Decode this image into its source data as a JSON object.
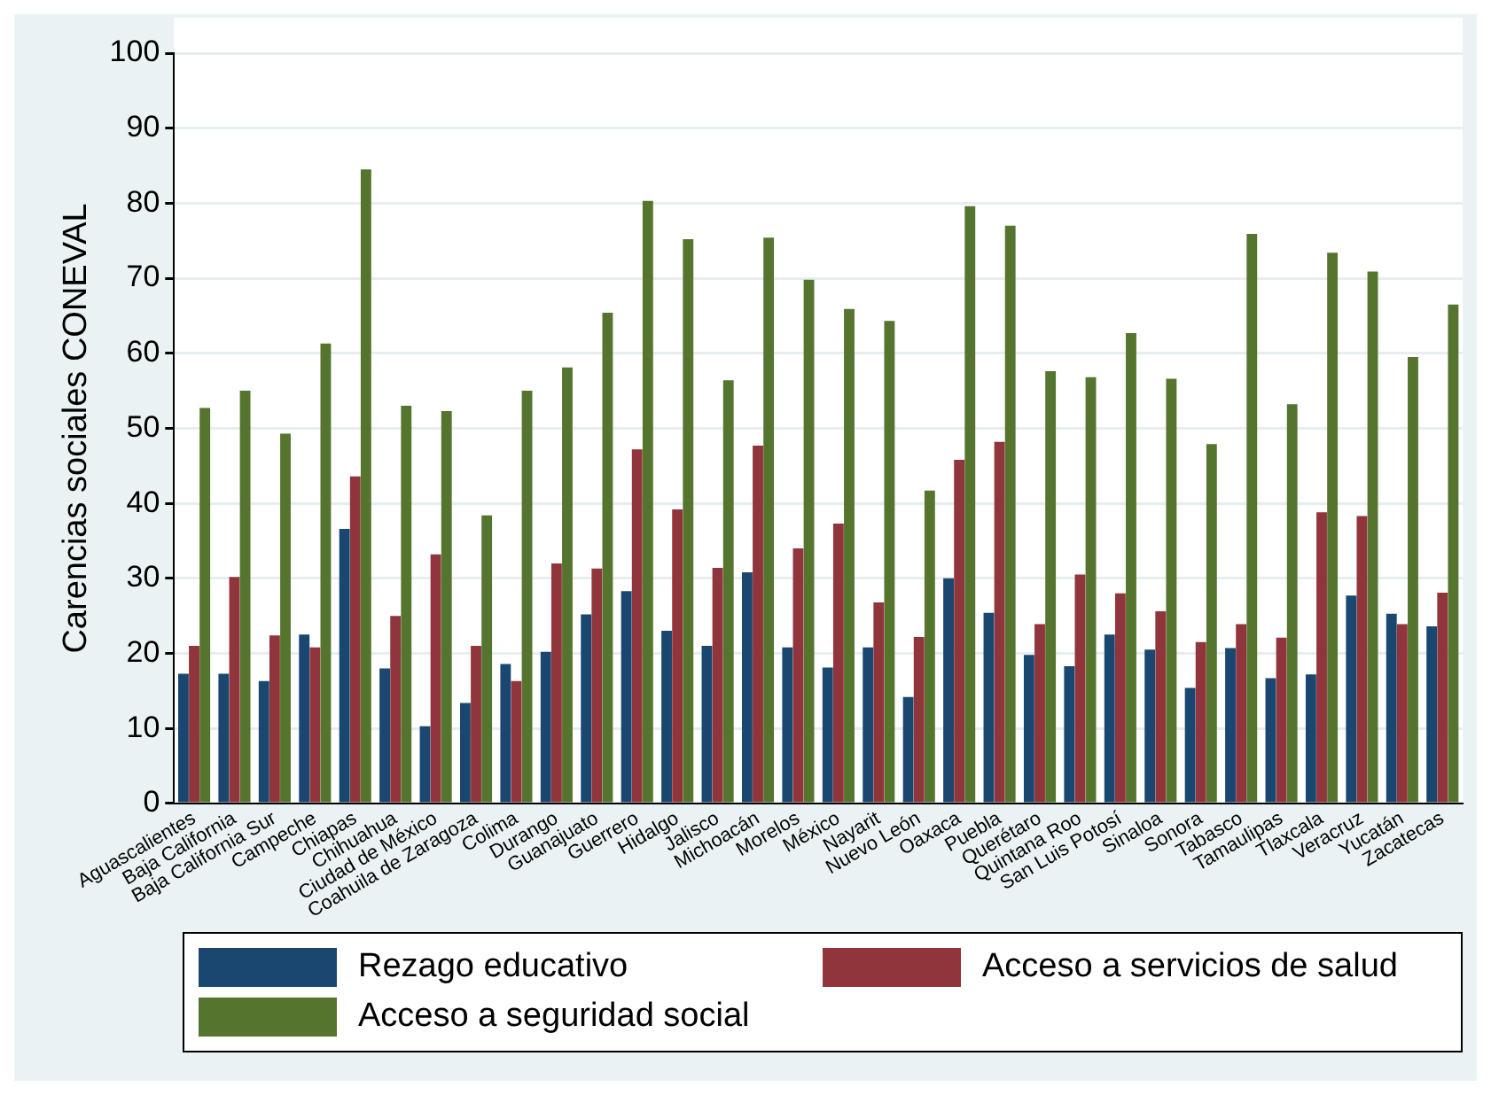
{
  "chart_data": {
    "type": "bar",
    "ylabel": "Carencias sociales CONEVAL",
    "categories": [
      "Aguascalientes",
      "Baja California",
      "Baja California Sur",
      "Campeche",
      "Chiapas",
      "Chihuahua",
      "Ciudad de México",
      "Coahuila de Zaragoza",
      "Colima",
      "Durango",
      "Guanajuato",
      "Guerrero",
      "Hidalgo",
      "Jalisco",
      "Michoacán",
      "Morelos",
      "México",
      "Nayarit",
      "Nuevo León",
      "Oaxaca",
      "Puebla",
      "Querétaro",
      "Quintana Roo",
      "San Luis Potosí",
      "Sinaloa",
      "Sonora",
      "Tabasco",
      "Tamaulipas",
      "Tlaxcala",
      "Veracruz",
      "Yucatán",
      "Zacatecas"
    ],
    "series": [
      {
        "name": "Rezago educativo",
        "color": "#1a476f",
        "values": [
          17.3,
          17.3,
          16.3,
          22.5,
          36.6,
          18,
          10.3,
          13.4,
          18.6,
          20.2,
          25.2,
          28.3,
          23,
          21,
          30.8,
          20.8,
          18.1,
          20.8,
          14.2,
          30,
          25.4,
          19.8,
          18.3,
          22.5,
          20.5,
          15.4,
          20.7,
          16.7,
          17.2,
          27.7,
          25.3,
          23.6
        ]
      },
      {
        "name": "Acceso a servicios de salud",
        "color": "#90353b",
        "values": [
          21,
          30.2,
          22.4,
          20.8,
          43.6,
          25,
          33.2,
          21,
          16.3,
          32,
          31.3,
          47.2,
          39.2,
          31.4,
          47.7,
          34,
          37.3,
          26.8,
          22.2,
          45.8,
          48.2,
          23.9,
          30.5,
          28,
          25.6,
          21.5,
          23.9,
          22.1,
          38.8,
          38.3,
          23.9,
          28.1
        ]
      },
      {
        "name": "Acceso a seguridad social",
        "color": "#55752f",
        "values": [
          52.7,
          55,
          49.3,
          61.3,
          84.5,
          53,
          52.3,
          38.4,
          55,
          58.1,
          65.4,
          80.3,
          75.2,
          56.4,
          75.4,
          69.8,
          65.9,
          64.3,
          41.7,
          79.6,
          77,
          57.6,
          56.8,
          62.7,
          56.6,
          47.9,
          75.9,
          53.2,
          73.4,
          70.9,
          59.5,
          66.5
        ]
      }
    ],
    "ylim": [
      0,
      100
    ],
    "yticks": [
      0,
      10,
      20,
      30,
      40,
      50,
      60,
      70,
      80,
      90,
      100
    ],
    "grid": "y",
    "legend": "bottom"
  }
}
